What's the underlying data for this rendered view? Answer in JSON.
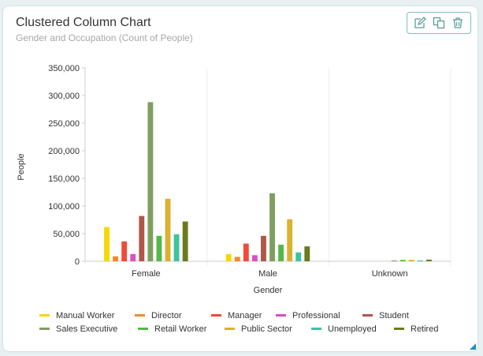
{
  "card": {
    "title": "Clustered Column Chart",
    "subtitle": "Gender and Occupation (Count of People)"
  },
  "toolbar": {
    "edit_icon": "edit-icon",
    "copy_icon": "copy-icon",
    "delete_icon": "trash-icon",
    "icon_color": "#5a9e9c"
  },
  "chart_data": {
    "type": "bar",
    "xlabel": "Gender",
    "ylabel": "People",
    "ylim": [
      0,
      350000
    ],
    "yticks": [
      0,
      50000,
      100000,
      150000,
      200000,
      250000,
      300000,
      350000
    ],
    "ytick_labels": [
      "0",
      "50,000",
      "100,000",
      "150,000",
      "200,000",
      "250,000",
      "300,000",
      "350,000"
    ],
    "categories": [
      "Female",
      "Male",
      "Unknown"
    ],
    "grid": false,
    "legend_position": "bottom",
    "series": [
      {
        "name": "Manual Worker",
        "color": "#f5d800",
        "values": [
          62000,
          13000,
          0
        ]
      },
      {
        "name": "Director",
        "color": "#f08a24",
        "values": [
          9000,
          8000,
          0
        ]
      },
      {
        "name": "Manager",
        "color": "#f24a38",
        "values": [
          36000,
          32000,
          0
        ]
      },
      {
        "name": "Professional",
        "color": "#d94fc4",
        "values": [
          13000,
          11000,
          0
        ]
      },
      {
        "name": "Student",
        "color": "#b0574a",
        "values": [
          82000,
          46000,
          0
        ]
      },
      {
        "name": "Sales Executive",
        "color": "#7f9f60",
        "values": [
          288000,
          123000,
          1500
        ]
      },
      {
        "name": "Retail Worker",
        "color": "#55b848",
        "values": [
          46000,
          30000,
          2500
        ]
      },
      {
        "name": "Public Sector",
        "color": "#dcb030",
        "values": [
          113000,
          76000,
          2500
        ]
      },
      {
        "name": "Unemployed",
        "color": "#3cc3a0",
        "values": [
          49000,
          16000,
          1500
        ]
      },
      {
        "name": "Retired",
        "color": "#6b7a1f",
        "values": [
          72000,
          27000,
          3000
        ]
      }
    ]
  }
}
